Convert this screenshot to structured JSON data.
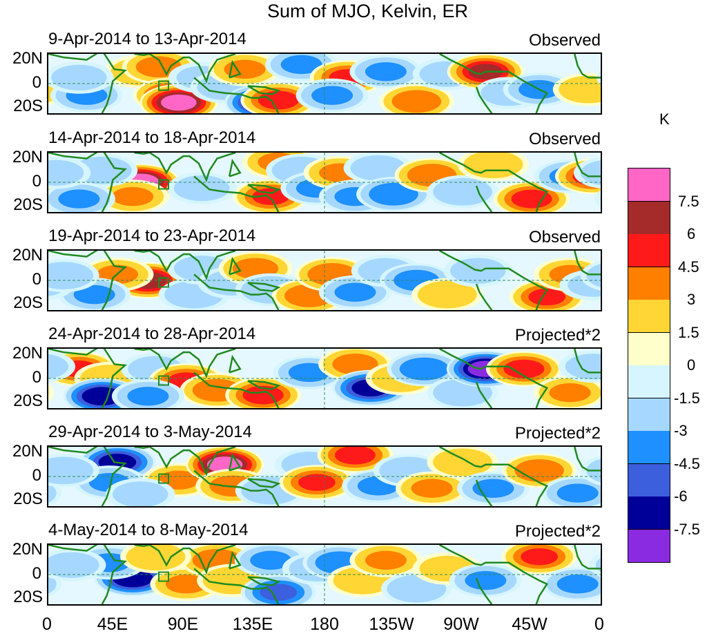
{
  "chart_data": {
    "type": "heatmap",
    "title": "Sum of MJO, Kelvin, ER",
    "units": "K",
    "x_ticks": [
      "0",
      "45E",
      "90E",
      "135E",
      "180",
      "135W",
      "90W",
      "45W",
      "0"
    ],
    "y_ticks": [
      "20N",
      "0",
      "20S"
    ],
    "x_range_deg_east": [
      0,
      360
    ],
    "y_range_deg": [
      -25,
      25
    ],
    "colorbar": {
      "levels": [
        "7.5",
        "6",
        "4.5",
        "3",
        "1.5",
        "0",
        "-1.5",
        "-3",
        "-4.5",
        "-6",
        "-7.5"
      ],
      "colors": [
        "#ff66c6",
        "#a52a2a",
        "#ff1a1a",
        "#ff7f00",
        "#ffd633",
        "#ffffcc",
        "#d6f5ff",
        "#a6d8ff",
        "#1e90ff",
        "#3c5fdd",
        "#000099",
        "#8a2be2"
      ]
    },
    "panels": [
      {
        "period": "9-Apr-2014 to 13-Apr-2014",
        "label": "Observed",
        "anomalies": [
          [
            60,
            10,
            2.5
          ],
          [
            72,
            14,
            3.5
          ],
          [
            80,
            -10,
            5
          ],
          [
            85,
            -16,
            8
          ],
          [
            100,
            5,
            -1.5
          ],
          [
            115,
            -3,
            -2
          ],
          [
            128,
            12,
            3
          ],
          [
            140,
            -16,
            -7
          ],
          [
            150,
            -14,
            5
          ],
          [
            165,
            16,
            -3
          ],
          [
            195,
            5,
            4.5
          ],
          [
            185,
            -10,
            -3
          ],
          [
            220,
            10,
            -3
          ],
          [
            240,
            -15,
            4
          ],
          [
            260,
            8,
            -2
          ],
          [
            285,
            10,
            6
          ],
          [
            300,
            -8,
            -2
          ],
          [
            320,
            -5,
            -3
          ],
          [
            352,
            -5,
            2.5
          ],
          [
            25,
            -10,
            -3
          ],
          [
            20,
            5,
            -2
          ]
        ]
      },
      {
        "period": "14-Apr-2014 to 18-Apr-2014",
        "label": "Observed",
        "anomalies": [
          [
            60,
            0,
            8.5
          ],
          [
            55,
            -12,
            3
          ],
          [
            35,
            10,
            -2.5
          ],
          [
            100,
            -5,
            -2
          ],
          [
            145,
            -12,
            4.5
          ],
          [
            150,
            17,
            3
          ],
          [
            165,
            10,
            -2.5
          ],
          [
            175,
            -5,
            -3
          ],
          [
            190,
            8,
            3
          ],
          [
            200,
            -12,
            -3
          ],
          [
            215,
            12,
            -2
          ],
          [
            225,
            -10,
            -4
          ],
          [
            250,
            6,
            4
          ],
          [
            270,
            -8,
            -2.5
          ],
          [
            290,
            15,
            2.5
          ],
          [
            315,
            -14,
            5
          ],
          [
            340,
            5,
            -3
          ],
          [
            355,
            5,
            5
          ],
          [
            20,
            -14,
            -3
          ],
          [
            5,
            8,
            -2
          ]
        ]
      },
      {
        "period": "19-Apr-2014 to 23-Apr-2014",
        "label": "Observed",
        "anomalies": [
          [
            65,
            0,
            6.5
          ],
          [
            45,
            5,
            3
          ],
          [
            30,
            -12,
            -3
          ],
          [
            95,
            -12,
            -2.5
          ],
          [
            100,
            10,
            -2
          ],
          [
            120,
            -2,
            -2
          ],
          [
            135,
            10,
            3.5
          ],
          [
            145,
            -8,
            -2.5
          ],
          [
            170,
            -13,
            4
          ],
          [
            185,
            5,
            4
          ],
          [
            200,
            -10,
            -3
          ],
          [
            220,
            8,
            -2
          ],
          [
            240,
            0,
            -3.5
          ],
          [
            260,
            -12,
            2.5
          ],
          [
            280,
            8,
            -2
          ],
          [
            325,
            -14,
            4.5
          ],
          [
            340,
            5,
            3
          ],
          [
            355,
            -4,
            -1.5
          ],
          [
            10,
            4,
            -2.5
          ]
        ]
      },
      {
        "period": "24-Apr-2014 to 28-Apr-2014",
        "label": "Projected*2",
        "anomalies": [
          [
            20,
            8,
            4.5
          ],
          [
            40,
            0,
            2.5
          ],
          [
            35,
            -15,
            -7
          ],
          [
            70,
            8,
            -2
          ],
          [
            90,
            -2,
            4.5
          ],
          [
            110,
            -10,
            4
          ],
          [
            140,
            -14,
            5
          ],
          [
            170,
            5,
            -3
          ],
          [
            200,
            12,
            3.5
          ],
          [
            210,
            -8,
            -6.5
          ],
          [
            230,
            0,
            2.5
          ],
          [
            245,
            8,
            -4
          ],
          [
            270,
            -12,
            -2.5
          ],
          [
            285,
            8,
            -8
          ],
          [
            310,
            8,
            5
          ],
          [
            340,
            -12,
            3
          ],
          [
            355,
            10,
            -2
          ],
          [
            65,
            -15,
            -3
          ]
        ]
      },
      {
        "period": "29-Apr-2014 to 3-May-2014",
        "label": "Projected*2",
        "anomalies": [
          [
            45,
            12,
            -6.5
          ],
          [
            40,
            -5,
            -3
          ],
          [
            85,
            -3,
            3
          ],
          [
            115,
            10,
            8
          ],
          [
            120,
            -8,
            3.5
          ],
          [
            145,
            -12,
            -2.5
          ],
          [
            170,
            10,
            -2
          ],
          [
            175,
            -5,
            4.5
          ],
          [
            200,
            18,
            5
          ],
          [
            215,
            -8,
            -3
          ],
          [
            235,
            5,
            -2.5
          ],
          [
            250,
            -10,
            3
          ],
          [
            270,
            12,
            2.5
          ],
          [
            290,
            -10,
            -3
          ],
          [
            320,
            5,
            4
          ],
          [
            345,
            -14,
            -3
          ],
          [
            10,
            5,
            -2.5
          ],
          [
            60,
            -15,
            -2
          ]
        ]
      },
      {
        "period": "4-May-2014 to 8-May-2014",
        "label": "Projected*2",
        "anomalies": [
          [
            55,
            -3,
            -7
          ],
          [
            40,
            10,
            -3
          ],
          [
            90,
            -8,
            3
          ],
          [
            110,
            12,
            4
          ],
          [
            120,
            -5,
            2.5
          ],
          [
            145,
            12,
            -3
          ],
          [
            150,
            -15,
            -4.5
          ],
          [
            175,
            5,
            -2
          ],
          [
            190,
            10,
            -4
          ],
          [
            205,
            -5,
            2.5
          ],
          [
            220,
            12,
            3
          ],
          [
            240,
            -12,
            -2.5
          ],
          [
            260,
            5,
            2
          ],
          [
            285,
            -5,
            -3
          ],
          [
            320,
            15,
            4.5
          ],
          [
            345,
            -8,
            -3
          ],
          [
            15,
            8,
            -2
          ],
          [
            70,
            15,
            2.5
          ]
        ]
      }
    ]
  }
}
